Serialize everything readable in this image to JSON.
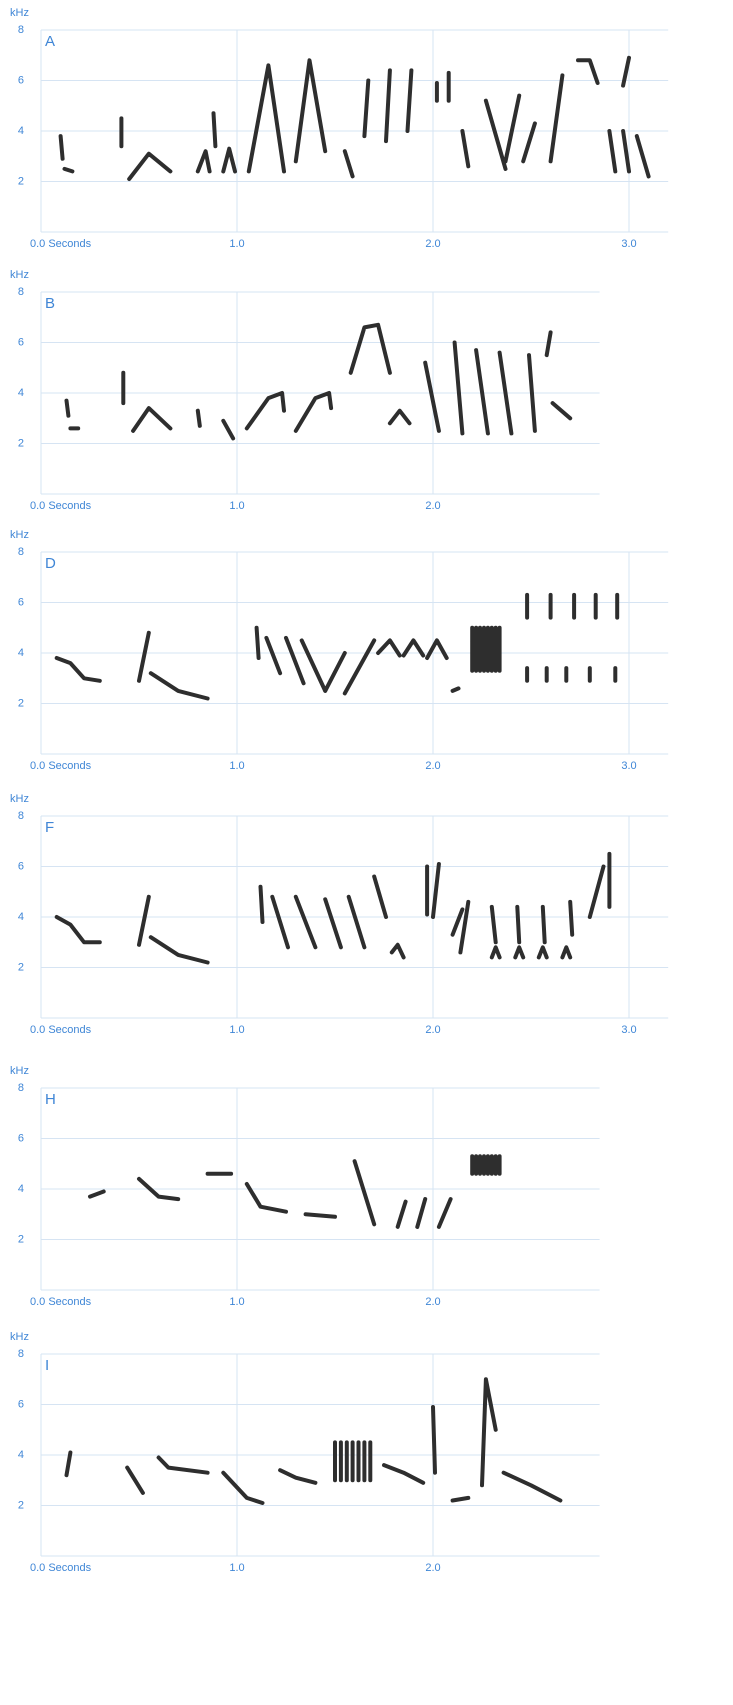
{
  "chart_data": [
    {
      "type": "spectrogram",
      "title": "A",
      "y_label": "kHz",
      "xlim": [
        0,
        3.2
      ],
      "ylim": [
        0,
        8
      ],
      "xticks": [
        {
          "value": 0,
          "label": "0.0 Seconds"
        },
        {
          "value": 1,
          "label": "1.0"
        },
        {
          "value": 2,
          "label": "2.0"
        },
        {
          "value": 3,
          "label": "3.0"
        }
      ],
      "yticks": [
        2,
        4,
        6,
        8
      ],
      "grid": true,
      "x": [
        0.1,
        0.11,
        null,
        0.12,
        0.16,
        null,
        0.41,
        0.41,
        null,
        0.45,
        0.55,
        0.66,
        null,
        0.8,
        0.84,
        0.86,
        null,
        0.88,
        0.89,
        null,
        0.93,
        0.96,
        0.99,
        null,
        1.06,
        1.16,
        1.24,
        null,
        1.3,
        1.37,
        1.45,
        null,
        1.55,
        1.59,
        null,
        1.67,
        1.65,
        null,
        1.78,
        1.76,
        null,
        1.89,
        1.87,
        null,
        2.02,
        2.02,
        null,
        2.08,
        2.08,
        null,
        2.15,
        2.18,
        null,
        2.27,
        2.37,
        null,
        2.44,
        2.37,
        null,
        2.52,
        2.46,
        null,
        2.6,
        2.66,
        null,
        2.74,
        2.8,
        2.84,
        null,
        2.9,
        2.93,
        null,
        2.97,
        3.0,
        null,
        3.0,
        2.97,
        null,
        3.04,
        3.1
      ],
      "series": [
        {
          "color": "#2e2e2e",
          "values": [
            3.8,
            2.9,
            null,
            2.5,
            2.4,
            null,
            4.5,
            3.4,
            null,
            2.1,
            3.1,
            2.4,
            null,
            2.4,
            3.2,
            2.4,
            null,
            4.7,
            3.4,
            null,
            2.4,
            3.3,
            2.4,
            null,
            2.4,
            6.6,
            2.4,
            null,
            2.8,
            6.8,
            3.2,
            null,
            3.2,
            2.2,
            null,
            6.0,
            3.8,
            null,
            6.4,
            3.6,
            null,
            6.4,
            4.0,
            null,
            5.9,
            5.2,
            null,
            6.3,
            5.2,
            null,
            4.0,
            2.6,
            null,
            5.2,
            2.5,
            null,
            5.4,
            2.8,
            null,
            4.3,
            2.8,
            null,
            2.8,
            6.2,
            null,
            6.8,
            6.8,
            5.9,
            null,
            4.0,
            2.4,
            null,
            4.0,
            2.4,
            null,
            6.9,
            5.8,
            null,
            3.8,
            2.2
          ]
        }
      ]
    },
    {
      "type": "spectrogram",
      "title": "B",
      "y_label": "kHz",
      "xlim": [
        0,
        2.85
      ],
      "ylim": [
        0,
        8
      ],
      "xticks": [
        {
          "value": 0,
          "label": "0.0 Seconds"
        },
        {
          "value": 1,
          "label": "1.0"
        },
        {
          "value": 2,
          "label": "2.0"
        }
      ],
      "yticks": [
        2,
        4,
        6,
        8
      ],
      "grid": true,
      "x": [
        0.13,
        0.14,
        null,
        0.15,
        0.19,
        null,
        0.42,
        0.42,
        null,
        0.47,
        0.55,
        0.66,
        null,
        0.8,
        0.81,
        null,
        0.93,
        0.98,
        null,
        1.05,
        1.16,
        1.23,
        1.24,
        null,
        1.3,
        1.4,
        1.47,
        1.48,
        null,
        1.58,
        1.65,
        1.72,
        1.78,
        null,
        1.78,
        1.83,
        1.88,
        null,
        1.96,
        2.03,
        null,
        2.11,
        2.15,
        null,
        2.22,
        2.28,
        null,
        2.34,
        2.4,
        null,
        2.49,
        2.52,
        null,
        2.6,
        2.58,
        null,
        2.61,
        2.7
      ],
      "series": [
        {
          "color": "#2e2e2e",
          "values": [
            3.7,
            3.1,
            null,
            2.6,
            2.6,
            null,
            4.8,
            3.6,
            null,
            2.5,
            3.4,
            2.6,
            null,
            3.3,
            2.7,
            null,
            2.9,
            2.2,
            null,
            2.6,
            3.8,
            4.0,
            3.3,
            null,
            2.5,
            3.8,
            4.0,
            3.4,
            null,
            4.8,
            6.6,
            6.7,
            4.8,
            null,
            2.8,
            3.3,
            2.8,
            null,
            5.2,
            2.5,
            null,
            6.0,
            2.4,
            null,
            5.7,
            2.4,
            null,
            5.6,
            2.4,
            null,
            5.5,
            2.5,
            null,
            6.4,
            5.5,
            null,
            3.6,
            3.0
          ]
        }
      ]
    },
    {
      "type": "spectrogram",
      "title": "D",
      "y_label": "kHz",
      "xlim": [
        0,
        3.2
      ],
      "ylim": [
        0,
        8
      ],
      "xticks": [
        {
          "value": 0,
          "label": "0.0 Seconds"
        },
        {
          "value": 1,
          "label": "1.0"
        },
        {
          "value": 2,
          "label": "2.0"
        },
        {
          "value": 3,
          "label": "3.0"
        }
      ],
      "yticks": [
        2,
        4,
        6,
        8
      ],
      "grid": true,
      "x": [
        0.08,
        0.15,
        0.22,
        0.3,
        null,
        0.5,
        0.55,
        null,
        0.56,
        0.7,
        0.85,
        null,
        1.1,
        1.11,
        null,
        1.15,
        1.22,
        null,
        1.25,
        1.34,
        null,
        1.33,
        1.45,
        null,
        1.45,
        1.55,
        null,
        1.55,
        1.7,
        null,
        1.72,
        1.78,
        1.83,
        null,
        1.85,
        1.9,
        1.95,
        null,
        1.97,
        2.02,
        2.07,
        null,
        2.1,
        2.13,
        null,
        2.2,
        2.2,
        null,
        2.22,
        2.22,
        null,
        2.24,
        2.24,
        null,
        2.26,
        2.26,
        null,
        2.28,
        2.28,
        null,
        2.3,
        2.3,
        null,
        2.32,
        2.32,
        null,
        2.34,
        2.34,
        null,
        2.48,
        2.48,
        null,
        2.6,
        2.6,
        null,
        2.72,
        2.72,
        null,
        2.83,
        2.83,
        null,
        2.94,
        2.94,
        null,
        2.48,
        2.48,
        null,
        2.58,
        2.58,
        null,
        2.68,
        2.68,
        null,
        2.8,
        2.8,
        null,
        2.93,
        2.93
      ],
      "series": [
        {
          "color": "#2e2e2e",
          "values": [
            3.8,
            3.6,
            3.0,
            2.9,
            null,
            2.9,
            4.8,
            null,
            3.2,
            2.5,
            2.2,
            null,
            5.0,
            3.8,
            null,
            4.6,
            3.2,
            null,
            4.6,
            2.8,
            null,
            4.5,
            2.5,
            null,
            2.5,
            4.0,
            null,
            2.4,
            4.5,
            null,
            4.0,
            4.5,
            3.9,
            null,
            3.9,
            4.5,
            3.9,
            null,
            3.8,
            4.5,
            3.8,
            null,
            2.5,
            2.6,
            null,
            5.0,
            3.3,
            null,
            5.0,
            3.3,
            null,
            5.0,
            3.3,
            null,
            5.0,
            3.3,
            null,
            5.0,
            3.3,
            null,
            5.0,
            3.3,
            null,
            5.0,
            3.3,
            null,
            5.0,
            3.3,
            null,
            6.3,
            5.4,
            null,
            6.3,
            5.4,
            null,
            6.3,
            5.4,
            null,
            6.3,
            5.4,
            null,
            6.3,
            5.4,
            null,
            3.4,
            2.9,
            null,
            3.4,
            2.9,
            null,
            3.4,
            2.9,
            null,
            3.4,
            2.9,
            null,
            3.4,
            2.9
          ]
        }
      ]
    },
    {
      "type": "spectrogram",
      "title": "F",
      "y_label": "kHz",
      "xlim": [
        0,
        3.2
      ],
      "ylim": [
        0,
        8
      ],
      "xticks": [
        {
          "value": 0,
          "label": "0.0 Seconds"
        },
        {
          "value": 1,
          "label": "1.0"
        },
        {
          "value": 2,
          "label": "2.0"
        },
        {
          "value": 3,
          "label": "3.0"
        }
      ],
      "yticks": [
        2,
        4,
        6,
        8
      ],
      "grid": true,
      "x": [
        0.08,
        0.15,
        0.22,
        0.3,
        null,
        0.5,
        0.55,
        null,
        0.56,
        0.7,
        0.85,
        null,
        1.12,
        1.13,
        null,
        1.18,
        1.26,
        null,
        1.3,
        1.4,
        null,
        1.45,
        1.53,
        null,
        1.57,
        1.65,
        null,
        1.7,
        1.76,
        null,
        1.79,
        1.82,
        1.85,
        null,
        1.97,
        1.97,
        null,
        2.03,
        2.0,
        null,
        2.1,
        2.15,
        null,
        2.14,
        2.18,
        null,
        2.3,
        2.32,
        null,
        2.43,
        2.44,
        null,
        2.56,
        2.57,
        null,
        2.7,
        2.71,
        null,
        2.3,
        2.32,
        2.34,
        null,
        2.42,
        2.44,
        2.46,
        null,
        2.54,
        2.56,
        2.58,
        null,
        2.66,
        2.68,
        2.7,
        null,
        2.8,
        2.87,
        null,
        2.9,
        2.9
      ],
      "series": [
        {
          "color": "#2e2e2e",
          "values": [
            4.0,
            3.7,
            3.0,
            3.0,
            null,
            2.9,
            4.8,
            null,
            3.2,
            2.5,
            2.2,
            null,
            5.2,
            3.8,
            null,
            4.8,
            2.8,
            null,
            4.8,
            2.8,
            null,
            4.7,
            2.8,
            null,
            4.8,
            2.8,
            null,
            5.6,
            4.0,
            null,
            2.6,
            2.9,
            2.4,
            null,
            6.0,
            4.1,
            null,
            6.1,
            4.0,
            null,
            3.3,
            4.3,
            null,
            2.6,
            4.6,
            null,
            4.4,
            3.0,
            null,
            4.4,
            3.0,
            null,
            4.4,
            3.0,
            null,
            4.6,
            3.3,
            null,
            2.4,
            2.8,
            2.4,
            null,
            2.4,
            2.8,
            2.4,
            null,
            2.4,
            2.8,
            2.4,
            null,
            2.4,
            2.8,
            2.4,
            null,
            4.0,
            6.0,
            null,
            6.5,
            4.4
          ]
        }
      ]
    },
    {
      "type": "spectrogram",
      "title": "H",
      "y_label": "kHz",
      "xlim": [
        0,
        2.85
      ],
      "ylim": [
        0,
        8
      ],
      "xticks": [
        {
          "value": 0,
          "label": "0.0 Seconds"
        },
        {
          "value": 1,
          "label": "1.0"
        },
        {
          "value": 2,
          "label": "2.0"
        }
      ],
      "yticks": [
        2,
        4,
        6,
        8
      ],
      "grid": true,
      "x": [
        0.25,
        0.32,
        null,
        0.5,
        0.6,
        0.7,
        null,
        0.85,
        0.97,
        null,
        1.05,
        1.12,
        1.25,
        null,
        1.35,
        1.5,
        null,
        1.6,
        1.7,
        null,
        1.82,
        1.86,
        null,
        1.92,
        1.96,
        null,
        2.03,
        2.09,
        null,
        2.2,
        2.2,
        null,
        2.22,
        2.22,
        null,
        2.24,
        2.24,
        null,
        2.26,
        2.26,
        null,
        2.28,
        2.28,
        null,
        2.3,
        2.3,
        null,
        2.32,
        2.32,
        null,
        2.34,
        2.34
      ],
      "series": [
        {
          "color": "#2e2e2e",
          "values": [
            3.7,
            3.9,
            null,
            4.4,
            3.7,
            3.6,
            null,
            4.6,
            4.6,
            null,
            4.2,
            3.3,
            3.1,
            null,
            3.0,
            2.9,
            null,
            5.1,
            2.6,
            null,
            2.5,
            3.5,
            null,
            2.5,
            3.6,
            null,
            2.5,
            3.6,
            null,
            5.3,
            4.6,
            null,
            5.3,
            4.6,
            null,
            5.3,
            4.6,
            null,
            5.3,
            4.6,
            null,
            5.3,
            4.6,
            null,
            5.3,
            4.6,
            null,
            5.3,
            4.6,
            null,
            5.3,
            4.6
          ]
        }
      ]
    },
    {
      "type": "spectrogram",
      "title": "I",
      "y_label": "kHz",
      "xlim": [
        0,
        2.85
      ],
      "ylim": [
        0,
        8
      ],
      "xticks": [
        {
          "value": 0,
          "label": "0.0 Seconds"
        },
        {
          "value": 1,
          "label": "1.0"
        },
        {
          "value": 2,
          "label": "2.0"
        }
      ],
      "yticks": [
        2,
        4,
        6,
        8
      ],
      "grid": true,
      "x": [
        0.13,
        0.15,
        null,
        0.44,
        0.48,
        0.52,
        null,
        0.6,
        0.65,
        0.85,
        null,
        0.93,
        1.05,
        1.13,
        null,
        1.22,
        1.3,
        1.4,
        null,
        1.5,
        1.5,
        null,
        1.53,
        1.53,
        null,
        1.56,
        1.56,
        null,
        1.59,
        1.59,
        null,
        1.62,
        1.62,
        null,
        1.65,
        1.65,
        null,
        1.68,
        1.68,
        null,
        1.75,
        1.85,
        1.95,
        null,
        2.0,
        2.01,
        null,
        2.1,
        2.18,
        null,
        2.25,
        2.27,
        2.32,
        null,
        2.36,
        2.5,
        2.65
      ],
      "series": [
        {
          "color": "#2e2e2e",
          "values": [
            3.2,
            4.1,
            null,
            3.5,
            3.0,
            2.5,
            null,
            3.9,
            3.5,
            3.3,
            null,
            3.3,
            2.3,
            2.1,
            null,
            3.4,
            3.1,
            2.9,
            null,
            4.5,
            3.0,
            null,
            4.5,
            3.0,
            null,
            4.5,
            3.0,
            null,
            4.5,
            3.0,
            null,
            4.5,
            3.0,
            null,
            4.5,
            3.0,
            null,
            4.5,
            3.0,
            null,
            3.6,
            3.3,
            2.9,
            null,
            5.9,
            3.3,
            null,
            2.2,
            2.3,
            null,
            2.8,
            7.0,
            5.0,
            null,
            3.3,
            2.8,
            2.2
          ]
        }
      ]
    }
  ]
}
